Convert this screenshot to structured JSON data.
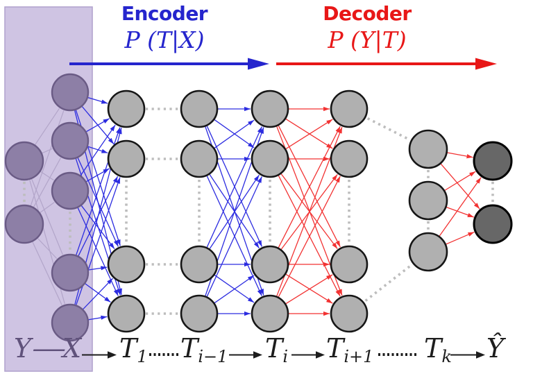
{
  "header": {
    "encoder": {
      "label": "Encoder",
      "formula": "P (T|X)"
    },
    "decoder": {
      "label": "Decoder",
      "formula": "P (Y|T)"
    }
  },
  "bottom_axis": {
    "y": "Y",
    "dash": "—",
    "x": "X",
    "t1": {
      "base": "T",
      "sub": "1"
    },
    "t_i_minus_1": {
      "base": "T",
      "sub": "i−1"
    },
    "t_i": {
      "base": "T",
      "sub": "i"
    },
    "t_i_plus_1": {
      "base": "T",
      "sub": "i+1"
    },
    "t_k": {
      "base": "T",
      "sub": "k"
    },
    "y_hat": "Ŷ"
  },
  "colors": {
    "encoder_blue": "#2525cd",
    "decoder_red": "#e81717",
    "edge_blue": "#2c2ce0",
    "edge_red": "#f23232",
    "node_gray_fill": "#b0b0b0",
    "node_gray_stroke": "#161616",
    "node_dark_fill": "#676767",
    "node_dark_stroke": "#000000",
    "node_purple_fill": "#8d7fa6",
    "node_purple_stroke": "#6a5b85",
    "input_box_fill": "#cfc4e3",
    "input_box_stroke": "#b3a5cf",
    "purple_edge": "#b2a5c9",
    "dotted_gray": "#bdbdbd",
    "label_ink": "#1d1d1d",
    "label_plum": "#60527b"
  },
  "network": {
    "layers": [
      {
        "id": "Y",
        "nodes": 2,
        "style": "purple"
      },
      {
        "id": "X",
        "nodes": 5,
        "style": "purple"
      },
      {
        "id": "T1",
        "nodes": 4,
        "style": "gray"
      },
      {
        "id": "Ti-1",
        "nodes": 4,
        "style": "gray"
      },
      {
        "id": "Ti",
        "nodes": 4,
        "style": "gray"
      },
      {
        "id": "Ti+1",
        "nodes": 4,
        "style": "gray"
      },
      {
        "id": "Tk",
        "nodes": 3,
        "style": "gray"
      },
      {
        "id": "Yhat",
        "nodes": 2,
        "style": "dark"
      }
    ],
    "connections": [
      {
        "from": "Y",
        "to": "X",
        "type": "joint-input"
      },
      {
        "from": "X",
        "to": "T1",
        "type": "encoder"
      },
      {
        "from": "Ti-1",
        "to": "Ti",
        "type": "encoder"
      },
      {
        "from": "Ti",
        "to": "Ti+1",
        "type": "decoder"
      },
      {
        "from": "Tk",
        "to": "Yhat",
        "type": "decoder"
      }
    ]
  }
}
